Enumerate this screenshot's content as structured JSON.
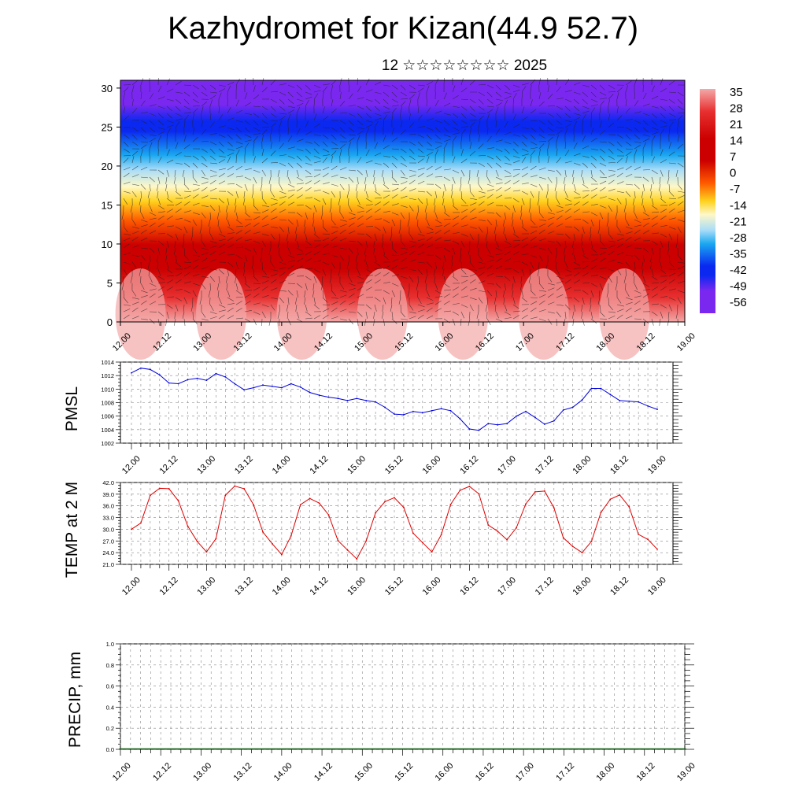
{
  "header": {
    "title": "Kazhydromet for Kizan(44.9 52.7)",
    "subtitle": "12 ☆☆☆☆☆☆☆☆ 2025"
  },
  "chart_data": [
    {
      "type": "heatmap",
      "title": "Kazhydromet for Kizan(44.9 52.7)",
      "subtitle": "12 ☆☆☆☆☆☆☆☆ 2025",
      "x_ticks": [
        "12.00",
        "12.12",
        "13.00",
        "13.12",
        "14.00",
        "14.12",
        "15.00",
        "15.12",
        "16.00",
        "16.12",
        "17.00",
        "17.12",
        "18.00",
        "18.12",
        "19.00"
      ],
      "y_ticks": [
        "0",
        "5",
        "10",
        "15",
        "20",
        "25",
        "30"
      ],
      "ylim": [
        0,
        31
      ],
      "colorbar_labels": [
        "35",
        "28",
        "21",
        "14",
        "7",
        "0",
        "-7",
        "-14",
        "-21",
        "-28",
        "-35",
        "-42",
        "-49",
        "-56"
      ],
      "colors": [
        "#f4a8a8",
        "#e83030",
        "#cc0000",
        "#ff5a00",
        "#ffd21e",
        "#fff8c8",
        "#a8dcf8",
        "#1aa8f0",
        "#0a28f0",
        "#7a28f0"
      ],
      "overlay": "wind barbs"
    },
    {
      "type": "line",
      "ylabel": "PMSL",
      "ylim": [
        1002,
        1014
      ],
      "y_ticks": [
        "1002",
        "1004",
        "1006",
        "1008",
        "1010",
        "1012",
        "1014"
      ],
      "x_ticks": [
        "12.00",
        "12.12",
        "13.00",
        "13.12",
        "14.00",
        "14.12",
        "15.00",
        "15.12",
        "16.00",
        "16.12",
        "17.00",
        "17.12",
        "18.00",
        "18.12",
        "19.00"
      ],
      "x": [
        0,
        3,
        6,
        9,
        12,
        15,
        18,
        21,
        24,
        27,
        30,
        33,
        36,
        39,
        42,
        45,
        48,
        51,
        54,
        57,
        60,
        63,
        66,
        69,
        72,
        75,
        78,
        81,
        84,
        87,
        90,
        93,
        96,
        99,
        102,
        105,
        108,
        111,
        114,
        117,
        120,
        123,
        126,
        129,
        132,
        135,
        138,
        141,
        144,
        147,
        150,
        153,
        156,
        159,
        162,
        165,
        168
      ],
      "series": [
        {
          "color": "#0000dd",
          "values": [
            1012.4,
            1013.1,
            1012.9,
            1012.1,
            1010.9,
            1010.8,
            1011.4,
            1011.6,
            1011.3,
            1012.3,
            1011.8,
            1010.8,
            1009.9,
            1010.2,
            1010.6,
            1010.4,
            1010.2,
            1010.8,
            1010.3,
            1009.5,
            1009.1,
            1008.8,
            1008.6,
            1008.3,
            1008.6,
            1008.3,
            1008.1,
            1007.3,
            1006.3,
            1006.2,
            1006.7,
            1006.5,
            1006.8,
            1007.1,
            1006.8,
            1005.6,
            1004.1,
            1003.9,
            1004.9,
            1004.7,
            1004.9,
            1006.0,
            1006.7,
            1005.8,
            1004.8,
            1005.3,
            1006.9,
            1007.3,
            1008.4,
            1010.1,
            1010.1,
            1009.2,
            1008.3,
            1008.2,
            1008.1,
            1007.5,
            1007.0
          ]
        }
      ]
    },
    {
      "type": "line",
      "ylabel": "TEMP at 2 M",
      "ylim": [
        21,
        42
      ],
      "y_ticks": [
        "21.0",
        "24.0",
        "27.0",
        "30.0",
        "33.0",
        "36.0",
        "39.0",
        "42.0"
      ],
      "x_ticks": [
        "12.00",
        "12.12",
        "13.00",
        "13.12",
        "14.00",
        "14.12",
        "15.00",
        "15.12",
        "16.00",
        "16.12",
        "17.00",
        "17.12",
        "18.00",
        "18.12",
        "19.00"
      ],
      "x": [
        0,
        3,
        6,
        9,
        12,
        15,
        18,
        21,
        24,
        27,
        30,
        33,
        36,
        39,
        42,
        45,
        48,
        51,
        54,
        57,
        60,
        63,
        66,
        69,
        72,
        75,
        78,
        81,
        84,
        87,
        90,
        93,
        96,
        99,
        102,
        105,
        108,
        111,
        114,
        117,
        120,
        123,
        126,
        129,
        132,
        135,
        138,
        141,
        144,
        147,
        150,
        153,
        156,
        159,
        162,
        165,
        168
      ],
      "series": [
        {
          "color": "#dd0000",
          "values": [
            30.0,
            31.6,
            38.7,
            40.5,
            40.4,
            37.3,
            30.8,
            26.9,
            24.2,
            27.6,
            38.7,
            41.1,
            40.4,
            36.3,
            29.3,
            26.3,
            23.5,
            28.3,
            36.3,
            37.9,
            36.7,
            33.7,
            27.1,
            24.7,
            22.4,
            27.0,
            34.2,
            37.1,
            38.1,
            35.6,
            29.0,
            26.6,
            24.2,
            28.6,
            36.4,
            40.0,
            41.0,
            39.1,
            31.1,
            29.5,
            27.3,
            30.4,
            36.5,
            39.6,
            39.8,
            35.5,
            27.8,
            25.6,
            24.0,
            26.9,
            34.3,
            37.7,
            38.8,
            35.8,
            28.7,
            27.4,
            24.9
          ]
        }
      ]
    },
    {
      "type": "bar",
      "ylabel": "PRECIP, mm",
      "ylim": [
        0,
        1
      ],
      "y_ticks": [
        "0.0",
        "0.2",
        "0.4",
        "0.6",
        "0.8",
        "1.0"
      ],
      "x_ticks": [
        "12.00",
        "12.12",
        "13.00",
        "13.12",
        "14.00",
        "14.12",
        "15.00",
        "15.12",
        "16.00",
        "16.12",
        "17.00",
        "17.12",
        "18.00",
        "18.12",
        "19.00"
      ],
      "values": [
        0,
        0,
        0,
        0,
        0,
        0,
        0,
        0,
        0,
        0,
        0,
        0,
        0,
        0,
        0
      ]
    }
  ]
}
